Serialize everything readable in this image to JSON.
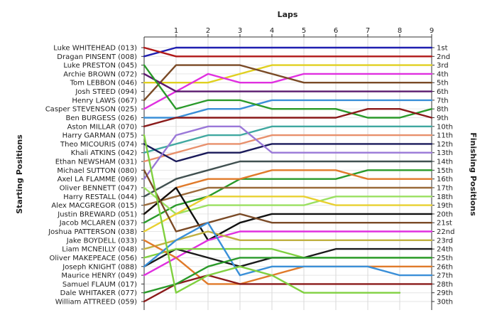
{
  "chart_data": {
    "type": "line",
    "title": "",
    "x_axis_label": "Laps",
    "y_axis_left_label": "Starting Positions",
    "y_axis_right_label": "Finishing Positions",
    "x_ticks": [
      "1",
      "2",
      "3",
      "4",
      "5",
      "6",
      "7",
      "8",
      "9"
    ],
    "x_range": [
      0,
      9
    ],
    "y_range": [
      1,
      30
    ],
    "y_inverted": true,
    "grid": true,
    "left_labels": [
      "Luke WHITEHEAD (013)",
      "Dragan PINSENT (008)",
      "Luke PRESTON (045)",
      "Archie BROWN (072)",
      "Tom LEBBON (046)",
      "Josh STEED (094)",
      "Henry LAWS (067)",
      "Casper STEVENSON (025)",
      "Ben BURGESS (026)",
      "Aston MILLAR (070)",
      "Harry GARMAN (075)",
      "Theo MICOURIS (074)",
      "Khali ATKINS (042)",
      "Ethan NEWSHAM (031)",
      "Michael SUTTON (080)",
      "Axel LA FLAMME (069)",
      "Oliver BENNETT (047)",
      "Harry RESTALL (044)",
      "Alex MACGREGOR (015)",
      "Justin BREWARD (051)",
      "Jacob MCLAREN (037)",
      "Joshua PATTERSON (038)",
      "Jake BOYDELL (033)",
      "Liam MCNEILLY (048)",
      "Oliver MAKEPEACE (056)",
      "Joseph KNIGHT (088)",
      "Maurice HENRY (049)",
      "Samuel FLAUM (017)",
      "Dale WHITAKER (077)",
      "William ATTREED (059)"
    ],
    "right_labels": [
      "1st",
      "2nd",
      "3rd",
      "4th",
      "5th",
      "6th",
      "7th",
      "8th",
      "9th",
      "10th",
      "11th",
      "12th",
      "13th",
      "14th",
      "15th",
      "16th",
      "17th",
      "18th",
      "19th",
      "20th",
      "21st",
      "22nd",
      "23rd",
      "24th",
      "25th",
      "26th",
      "27th",
      "28th",
      "29th",
      "30th"
    ],
    "series": [
      {
        "color": "#1f1fb0",
        "x": [
          0,
          1,
          2,
          3,
          4,
          5,
          6,
          7,
          8,
          9
        ],
        "y": [
          2,
          1,
          1,
          1,
          1,
          1,
          1,
          1,
          1,
          1
        ]
      },
      {
        "color": "#b01818",
        "x": [
          0,
          1,
          2,
          3,
          4,
          5,
          6,
          7,
          8,
          9
        ],
        "y": [
          1,
          2,
          2,
          2,
          2,
          2,
          2,
          2,
          2,
          2
        ]
      },
      {
        "color": "#e0d020",
        "x": [
          0,
          1,
          2,
          3,
          4,
          5,
          6,
          7,
          8,
          9
        ],
        "y": [
          5,
          5,
          5,
          4,
          3,
          3,
          3,
          3,
          3,
          3
        ]
      },
      {
        "color": "#e030e0",
        "x": [
          0,
          1,
          2,
          3,
          4,
          5,
          6,
          7,
          8,
          9
        ],
        "y": [
          8,
          6,
          4,
          5,
          5,
          4,
          4,
          4,
          4,
          4
        ]
      },
      {
        "color": "#7a4a26",
        "x": [
          0,
          1,
          2,
          3,
          4,
          5,
          6,
          7,
          8,
          9
        ],
        "y": [
          7,
          3,
          3,
          3,
          4,
          5,
          5,
          5,
          5,
          5
        ]
      },
      {
        "color": "#5a1a6e",
        "x": [
          0,
          1,
          2,
          3,
          4,
          5,
          6,
          7,
          8,
          9
        ],
        "y": [
          4,
          6,
          6,
          6,
          6,
          6,
          6,
          6,
          6,
          6
        ]
      },
      {
        "color": "#3a8fd8",
        "x": [
          0,
          1,
          2,
          3,
          4,
          5,
          6,
          7,
          8,
          9
        ],
        "y": [
          9,
          9,
          8,
          8,
          7,
          7,
          7,
          7,
          7,
          7
        ]
      },
      {
        "color": "#2a9a2a",
        "x": [
          0,
          1,
          2,
          3,
          4,
          5,
          6,
          7,
          8,
          9
        ],
        "y": [
          3,
          8,
          7,
          7,
          8,
          8,
          8,
          9,
          9,
          8
        ]
      },
      {
        "color": "#8a1a1a",
        "x": [
          0,
          1,
          2,
          3,
          4,
          5,
          6,
          7,
          8,
          9
        ],
        "y": [
          10,
          9,
          9,
          9,
          9,
          9,
          9,
          8,
          8,
          9
        ]
      },
      {
        "color": "#40a8a0",
        "x": [
          0,
          1,
          2,
          3,
          4,
          5,
          6,
          7,
          8,
          9
        ],
        "y": [
          13,
          12,
          11,
          11,
          10,
          10,
          10,
          10,
          10,
          10
        ]
      },
      {
        "color": "#e8906c",
        "x": [
          0,
          1,
          2,
          3,
          4,
          5,
          6,
          7,
          8,
          9
        ],
        "y": [
          14,
          13,
          12,
          12,
          11,
          11,
          11,
          11,
          11,
          11
        ]
      },
      {
        "color": "#1a1a5a",
        "x": [
          0,
          1,
          2,
          3,
          4,
          5,
          6,
          7,
          8,
          9
        ],
        "y": [
          12,
          14,
          13,
          13,
          12,
          12,
          12,
          12,
          12,
          12
        ]
      },
      {
        "color": "#9a78d8",
        "x": [
          0,
          1,
          2,
          3,
          4,
          5,
          6,
          7,
          8,
          9
        ],
        "y": [
          16,
          11,
          10,
          10,
          13,
          13,
          13,
          13,
          13,
          13
        ]
      },
      {
        "color": "#405050",
        "x": [
          0,
          1,
          2,
          3,
          4,
          5,
          6,
          7,
          8,
          9
        ],
        "y": [
          18,
          16,
          15,
          14,
          14,
          14,
          14,
          14,
          14,
          14
        ]
      },
      {
        "color": "#2a9a2a",
        "x": [
          0,
          1,
          2,
          3,
          4,
          5,
          6,
          7,
          8,
          9
        ],
        "y": [
          21,
          19,
          18,
          16,
          16,
          16,
          16,
          15,
          15,
          15
        ]
      },
      {
        "color": "#e07a2a",
        "x": [
          0,
          1,
          2,
          3,
          4,
          5,
          6,
          7,
          8,
          9
        ],
        "y": [
          20,
          17,
          16,
          16,
          15,
          15,
          15,
          16,
          16,
          16
        ]
      },
      {
        "color": "#9a6a3a",
        "x": [
          0,
          1,
          2,
          3,
          4,
          5,
          6,
          7,
          8,
          9
        ],
        "y": [
          19,
          18,
          17,
          17,
          17,
          17,
          17,
          17,
          17,
          17
        ]
      },
      {
        "color": "#9ae060",
        "x": [
          0,
          1,
          2,
          3,
          4,
          5,
          6,
          7,
          8,
          9
        ],
        "y": [
          17,
          20,
          19,
          19,
          19,
          19,
          18,
          18,
          18,
          18
        ]
      },
      {
        "color": "#e8d030",
        "x": [
          0,
          1,
          2,
          3,
          4,
          5,
          6,
          7,
          8,
          9
        ],
        "y": [
          22,
          20,
          18,
          18,
          18,
          18,
          19,
          19,
          19,
          19
        ]
      },
      {
        "color": "#111111",
        "x": [
          0,
          1,
          2,
          3,
          4,
          5,
          6,
          7,
          8,
          9
        ],
        "y": [
          20,
          17,
          23,
          21,
          20,
          20,
          20,
          20,
          20,
          20
        ]
      },
      {
        "color": "#7a4a26",
        "x": [
          0,
          1,
          2,
          3,
          4,
          5,
          6,
          7,
          8,
          9
        ],
        "y": [
          15,
          22,
          21,
          20,
          21,
          21,
          21,
          21,
          21,
          21
        ]
      },
      {
        "color": "#e030e0",
        "x": [
          0,
          1,
          2,
          3,
          4,
          5,
          6,
          7,
          8,
          9
        ],
        "y": [
          27,
          25,
          23,
          22,
          22,
          22,
          22,
          22,
          22,
          22
        ]
      },
      {
        "color": "#c0b040",
        "x": [
          0,
          1,
          2,
          3,
          4,
          5,
          6,
          7,
          8,
          9
        ],
        "y": [
          24,
          23,
          22,
          23,
          23,
          23,
          23,
          23,
          23,
          23
        ]
      },
      {
        "color": "#1a1a1a",
        "x": [
          0,
          1,
          2,
          3,
          4,
          5,
          6,
          7,
          8,
          9
        ],
        "y": [
          26,
          24,
          25,
          26,
          25,
          25,
          24,
          24,
          24,
          24
        ]
      },
      {
        "color": "#80d040",
        "x": [
          0,
          1,
          2,
          3,
          4,
          5,
          6,
          7,
          8,
          9
        ],
        "y": [
          25,
          24,
          24,
          24,
          24,
          25,
          25,
          25,
          25,
          25
        ]
      },
      {
        "color": "#e07a2a",
        "x": [
          0,
          1,
          2,
          3,
          4,
          5,
          6,
          7,
          8,
          9
        ],
        "y": [
          23,
          25,
          28,
          28,
          27,
          26,
          26,
          26,
          26,
          26
        ]
      },
      {
        "color": "#3a8fd8",
        "x": [
          0,
          1,
          2,
          3,
          4,
          5,
          6,
          7,
          8,
          9
        ],
        "y": [
          26,
          23,
          21,
          27,
          26,
          26,
          26,
          26,
          27,
          27
        ]
      },
      {
        "color": "#8a1a1a",
        "x": [
          0,
          1,
          2,
          3,
          4,
          5,
          6,
          7,
          8,
          9
        ],
        "y": [
          30,
          28,
          27,
          28,
          28,
          28,
          28,
          28,
          28,
          28
        ]
      },
      {
        "color": "#2a9a2a",
        "x": [
          0,
          1,
          2,
          3,
          4,
          5,
          6,
          7,
          8,
          9
        ],
        "y": [
          29,
          28,
          26,
          25,
          25,
          25,
          25,
          25,
          25,
          25
        ]
      },
      {
        "color": "#80d040",
        "x": [
          0,
          1,
          2,
          3,
          4,
          5,
          6,
          7,
          8
        ],
        "y": [
          11,
          29,
          27,
          26,
          27,
          29,
          29,
          29,
          29
        ]
      }
    ]
  }
}
